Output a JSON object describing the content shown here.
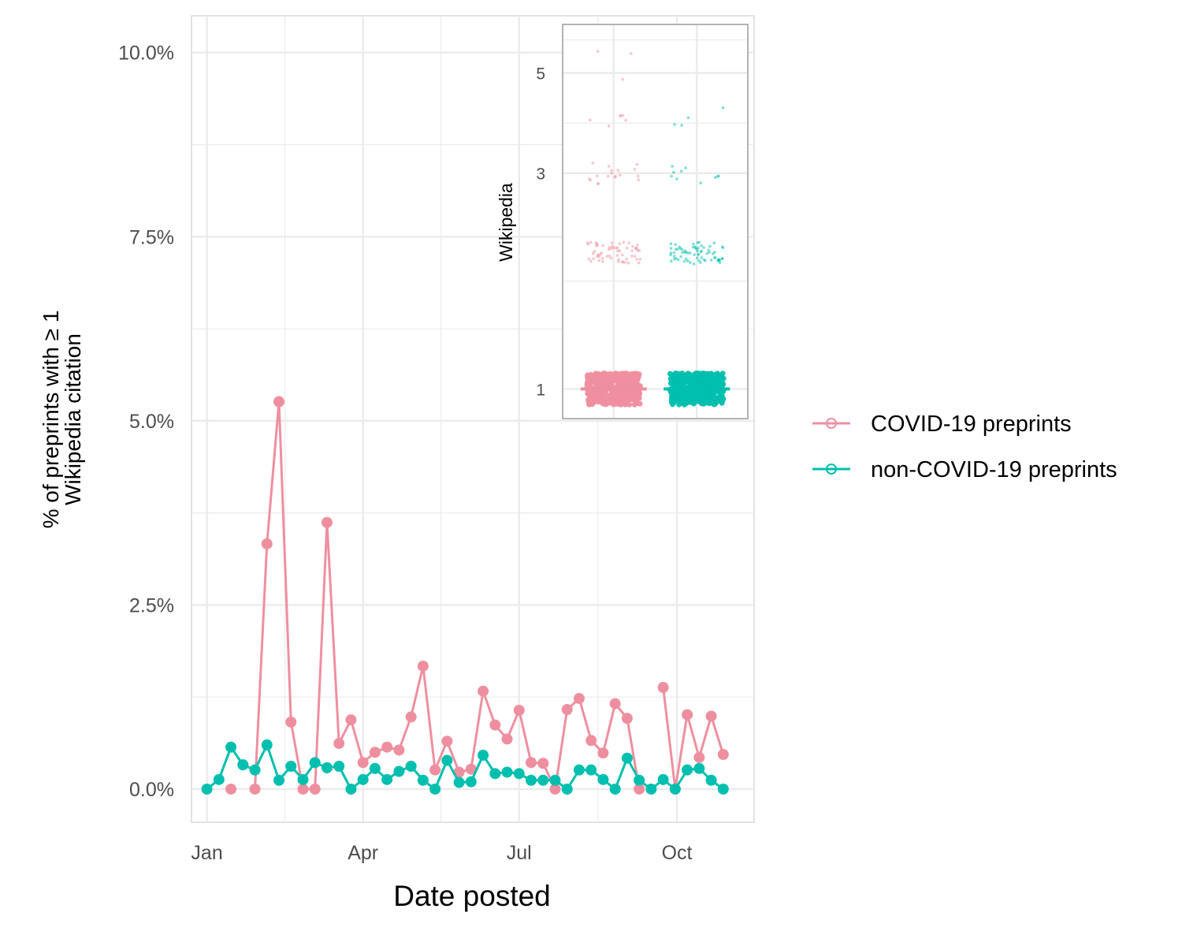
{
  "chart_data": [
    {
      "type": "line",
      "xlabel": "Date posted",
      "ylabel_lines": [
        "% of preprints with ≥ 1",
        "Wikipedia citation"
      ],
      "x_ticks": [
        "Jan",
        "Apr",
        "Jul",
        "Oct"
      ],
      "x_tick_dates": [
        "2020-01-01",
        "2020-04-01",
        "2020-07-01",
        "2020-10-01"
      ],
      "xlim": [
        "2019-12-23",
        "2020-11-15"
      ],
      "y_ticks": [
        "0.0%",
        "2.5%",
        "5.0%",
        "7.5%",
        "10.0%"
      ],
      "y_tick_values": [
        0,
        2.5,
        5,
        7.5,
        10
      ],
      "ylim": [
        -0.45,
        10.5
      ],
      "grid": true,
      "legend_position": "right",
      "series": [
        {
          "name": "COVID-19 preprints",
          "color": "#ee8fa0",
          "x": [
            "2020-01-01",
            "2020-01-08",
            "2020-01-15",
            "2020-01-22",
            "2020-01-29",
            "2020-02-05",
            "2020-02-12",
            "2020-02-19",
            "2020-02-26",
            "2020-03-04",
            "2020-03-11",
            "2020-03-18",
            "2020-03-25",
            "2020-04-01",
            "2020-04-08",
            "2020-04-15",
            "2020-04-22",
            "2020-04-29",
            "2020-05-06",
            "2020-05-13",
            "2020-05-20",
            "2020-05-27",
            "2020-06-03",
            "2020-06-10",
            "2020-06-17",
            "2020-06-24",
            "2020-07-01",
            "2020-07-08",
            "2020-07-15",
            "2020-07-22",
            "2020-07-29",
            "2020-08-05",
            "2020-08-12",
            "2020-08-19",
            "2020-08-26",
            "2020-09-02",
            "2020-09-09",
            "2020-09-16",
            "2020-09-23",
            "2020-09-30",
            "2020-10-07",
            "2020-10-14",
            "2020-10-21",
            "2020-10-28"
          ],
          "y": [
            null,
            null,
            0.0,
            null,
            0.0,
            3.33,
            5.26,
            0.91,
            0.0,
            0.0,
            3.62,
            0.62,
            0.94,
            0.36,
            0.5,
            0.57,
            0.53,
            0.98,
            1.67,
            0.26,
            0.65,
            0.23,
            0.27,
            1.33,
            0.87,
            0.68,
            1.07,
            0.36,
            0.35,
            0.0,
            1.08,
            1.23,
            0.66,
            0.49,
            1.16,
            0.96,
            0.0,
            null,
            1.38,
            0.0,
            1.01,
            0.43,
            0.99,
            0.47
          ]
        },
        {
          "name": "non-COVID-19 preprints",
          "color": "#00bfae",
          "x": [
            "2020-01-01",
            "2020-01-08",
            "2020-01-15",
            "2020-01-22",
            "2020-01-29",
            "2020-02-05",
            "2020-02-12",
            "2020-02-19",
            "2020-02-26",
            "2020-03-04",
            "2020-03-11",
            "2020-03-18",
            "2020-03-25",
            "2020-04-01",
            "2020-04-08",
            "2020-04-15",
            "2020-04-22",
            "2020-04-29",
            "2020-05-06",
            "2020-05-13",
            "2020-05-20",
            "2020-05-27",
            "2020-06-03",
            "2020-06-10",
            "2020-06-17",
            "2020-06-24",
            "2020-07-01",
            "2020-07-08",
            "2020-07-15",
            "2020-07-22",
            "2020-07-29",
            "2020-08-05",
            "2020-08-12",
            "2020-08-19",
            "2020-08-26",
            "2020-09-02",
            "2020-09-09",
            "2020-09-16",
            "2020-09-23",
            "2020-09-30",
            "2020-10-07",
            "2020-10-14",
            "2020-10-21",
            "2020-10-28"
          ],
          "y": [
            0.0,
            0.13,
            0.57,
            0.33,
            0.26,
            0.6,
            0.12,
            0.31,
            0.13,
            0.36,
            0.29,
            0.31,
            0.0,
            0.13,
            0.28,
            0.13,
            0.24,
            0.31,
            0.12,
            0.0,
            0.39,
            0.09,
            0.1,
            0.46,
            0.21,
            0.23,
            0.21,
            0.12,
            0.12,
            0.12,
            0.0,
            0.26,
            0.26,
            0.13,
            0.0,
            0.42,
            0.12,
            0.0,
            0.13,
            0.0,
            0.26,
            0.28,
            0.12,
            0.0
          ]
        }
      ]
    },
    {
      "type": "scatter",
      "ylabel": "Wikipedia",
      "y_scale": "log",
      "y_ticks": [
        "1",
        "3",
        "5"
      ],
      "y_tick_values": [
        1,
        3,
        5
      ],
      "ylim": [
        0.86,
        6.4
      ],
      "grid": true,
      "groups": [
        {
          "name": "COVID-19 preprints",
          "color": "#ee8fa0",
          "points": [
            {
              "y": 1,
              "count": 400
            },
            {
              "y": 2,
              "count": 60
            },
            {
              "y": 3,
              "count": 18
            },
            {
              "y": 4,
              "count": 6
            },
            {
              "y": 4.6,
              "count": 1
            },
            {
              "y": 5.5,
              "count": 2
            }
          ]
        },
        {
          "name": "non-COVID-19 preprints",
          "color": "#00bfae",
          "points": [
            {
              "y": 1,
              "count": 400
            },
            {
              "y": 2,
              "count": 70
            },
            {
              "y": 3,
              "count": 10
            },
            {
              "y": 4,
              "count": 4
            }
          ]
        }
      ]
    }
  ]
}
